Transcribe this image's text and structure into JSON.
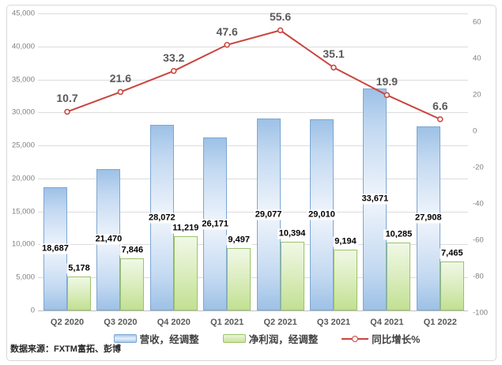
{
  "source_note": "数据来源：FXTM富拓、彭博",
  "chart_data": {
    "type": "bar",
    "subtype": "combo-bar-line",
    "title": "",
    "categories": [
      "Q2 2020",
      "Q3 2020",
      "Q4 2020",
      "Q1 2021",
      "Q2 2021",
      "Q3 2021",
      "Q4 2021",
      "Q1 2022"
    ],
    "series": [
      {
        "name": "营收，经调整",
        "type": "bar",
        "axis": "left",
        "values": [
          18687,
          21470,
          28072,
          26171,
          29077,
          29010,
          33671,
          27908
        ]
      },
      {
        "name": "净利润，经调整",
        "type": "bar",
        "axis": "left",
        "values": [
          5178,
          7846,
          11219,
          9497,
          10394,
          9194,
          10285,
          7465
        ]
      },
      {
        "name": "同比增长%",
        "type": "line",
        "axis": "right",
        "values": [
          10.7,
          21.6,
          33.2,
          47.6,
          55.6,
          35.1,
          19.9,
          6.6
        ]
      }
    ],
    "left_axis": {
      "min": 0,
      "max": 45000,
      "step": 5000
    },
    "right_axis": {
      "min": -100,
      "max": 60,
      "step": 20
    },
    "grid": true,
    "legend_position": "bottom",
    "colors": {
      "revenue_bar": "#a6c8ea",
      "revenue_border": "#7ea6d3",
      "profit_bar": "#c8e49a",
      "profit_border": "#9cc368",
      "growth_line": "#c9453f",
      "gridline": "#dcdcdc",
      "axis_text": "#7f7f7f",
      "data_label": "#000000",
      "growth_label": "#595959"
    }
  },
  "legend": {
    "revenue_label": "营收，经调整",
    "profit_label": "净利润，经调整",
    "growth_label": "同比增长%"
  }
}
